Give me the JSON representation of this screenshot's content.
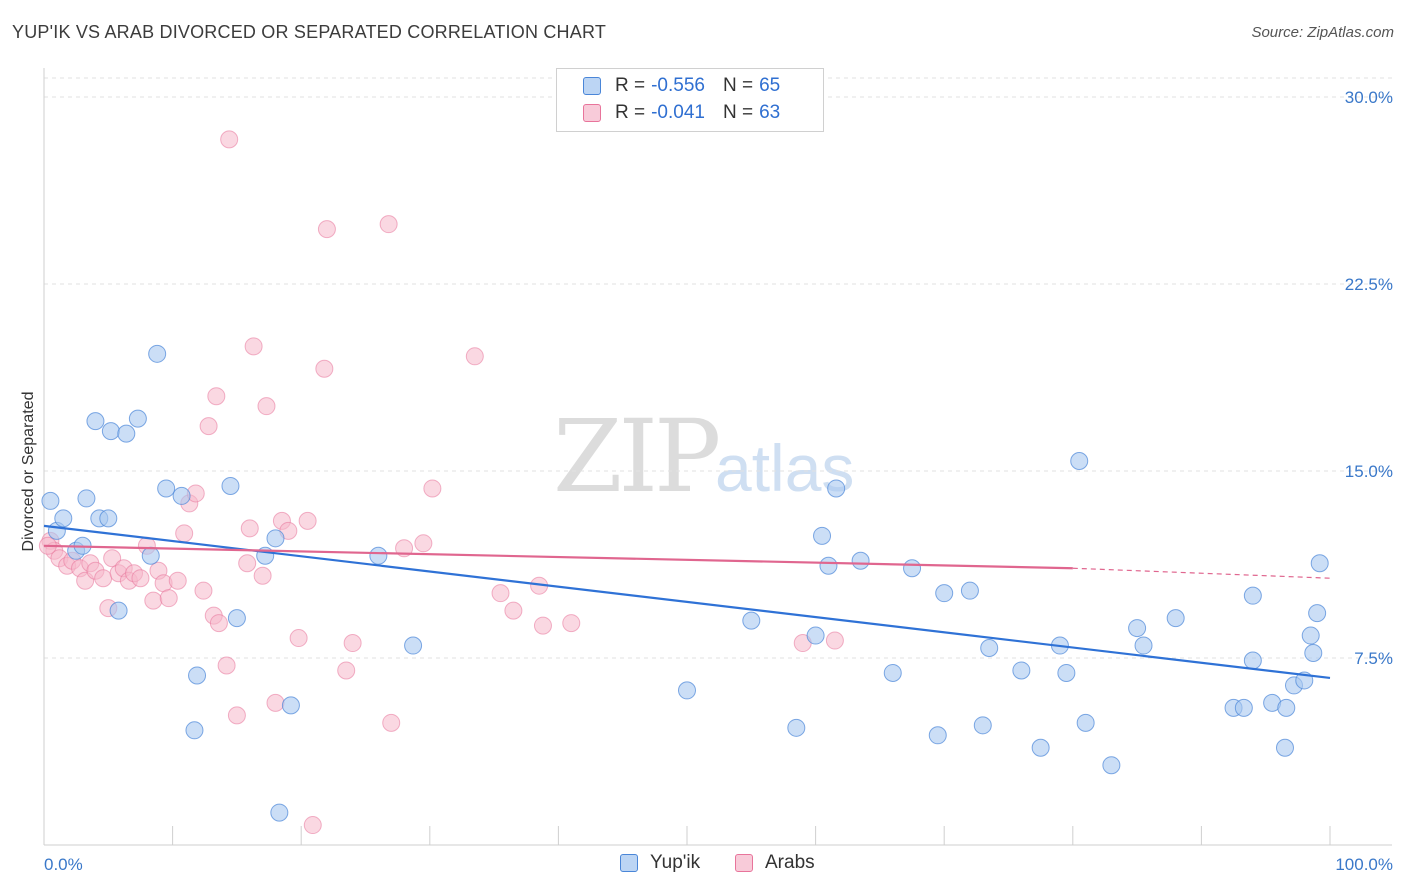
{
  "header": {
    "title": "YUP'IK VS ARAB DIVORCED OR SEPARATED CORRELATION CHART",
    "source": "Source: ZipAtlas.com"
  },
  "watermark": {
    "zip": "ZIP",
    "atlas": "atlas"
  },
  "legend": {
    "rows": [
      {
        "r_label": "R =",
        "r_value": "-0.556",
        "n_label": "N =",
        "n_value": "65",
        "color": "#a9c8f0"
      },
      {
        "r_label": "R =",
        "r_value": "-0.041",
        "n_label": "N =",
        "n_value": "63",
        "color": "#f5b8cb"
      }
    ]
  },
  "bottom_legend": {
    "series1": "Yup'ik",
    "series2": "Arabs"
  },
  "chart_data": {
    "type": "scatter",
    "title": "YUP'IK VS ARAB DIVORCED OR SEPARATED CORRELATION CHART",
    "xlabel": "",
    "ylabel": "Divorced or Separated",
    "xlim": [
      0,
      100
    ],
    "ylim": [
      0,
      31.5
    ],
    "x_tick_labels": [
      "0.0%",
      "100.0%"
    ],
    "y_ticks": [
      7.5,
      15.0,
      22.5,
      30.0
    ],
    "y_tick_labels": [
      "7.5%",
      "15.0%",
      "22.5%",
      "30.0%"
    ],
    "grid": true,
    "colors": {
      "yupik": "#4a86d8",
      "arabs": "#e8749b",
      "yupik_fill": "#a9c8f0",
      "arabs_fill": "#f5b8cb"
    },
    "series": [
      {
        "name": "Yup'ik",
        "trend": {
          "x": [
            0,
            100
          ],
          "y": [
            12.8,
            6.7
          ]
        },
        "points": [
          [
            0.5,
            13.8
          ],
          [
            1.0,
            12.6
          ],
          [
            1.5,
            13.1
          ],
          [
            2.5,
            11.8
          ],
          [
            3.0,
            12.0
          ],
          [
            3.3,
            13.9
          ],
          [
            4.0,
            17.0
          ],
          [
            4.3,
            13.1
          ],
          [
            5.0,
            13.1
          ],
          [
            5.2,
            16.6
          ],
          [
            5.8,
            9.4
          ],
          [
            6.4,
            16.5
          ],
          [
            7.3,
            17.1
          ],
          [
            8.3,
            11.6
          ],
          [
            8.8,
            19.7
          ],
          [
            9.5,
            14.3
          ],
          [
            10.7,
            14.0
          ],
          [
            11.7,
            4.6
          ],
          [
            11.9,
            6.8
          ],
          [
            14.5,
            14.4
          ],
          [
            15.0,
            9.1
          ],
          [
            17.2,
            11.6
          ],
          [
            18.0,
            12.3
          ],
          [
            18.3,
            1.3
          ],
          [
            19.2,
            5.6
          ],
          [
            26.0,
            11.6
          ],
          [
            28.7,
            8.0
          ],
          [
            50.0,
            6.2
          ],
          [
            55.0,
            9.0
          ],
          [
            58.5,
            4.7
          ],
          [
            60.0,
            8.4
          ],
          [
            60.5,
            12.4
          ],
          [
            61.0,
            11.2
          ],
          [
            61.6,
            14.3
          ],
          [
            63.5,
            11.4
          ],
          [
            66.0,
            6.9
          ],
          [
            67.5,
            11.1
          ],
          [
            69.5,
            4.4
          ],
          [
            70.0,
            10.1
          ],
          [
            72.0,
            10.2
          ],
          [
            73.0,
            4.8
          ],
          [
            73.5,
            7.9
          ],
          [
            76.0,
            7.0
          ],
          [
            77.5,
            3.9
          ],
          [
            79.0,
            8.0
          ],
          [
            79.5,
            6.9
          ],
          [
            80.5,
            15.4
          ],
          [
            81.0,
            4.9
          ],
          [
            83.0,
            3.2
          ],
          [
            85.0,
            8.7
          ],
          [
            85.5,
            8.0
          ],
          [
            88.0,
            9.1
          ],
          [
            92.5,
            5.5
          ],
          [
            93.3,
            5.5
          ],
          [
            94.0,
            7.4
          ],
          [
            94.0,
            10.0
          ],
          [
            95.5,
            5.7
          ],
          [
            96.5,
            3.9
          ],
          [
            96.6,
            5.5
          ],
          [
            97.2,
            6.4
          ],
          [
            98.5,
            8.4
          ],
          [
            98.7,
            7.7
          ],
          [
            99.0,
            9.3
          ],
          [
            99.2,
            11.3
          ],
          [
            98.0,
            6.6
          ]
        ]
      },
      {
        "name": "Arabs",
        "trend": {
          "x": [
            0,
            80
          ],
          "y": [
            12.0,
            11.1
          ],
          "dashed_to": [
            100,
            10.7
          ]
        },
        "points": [
          [
            0.5,
            12.2
          ],
          [
            0.8,
            11.8
          ],
          [
            1.2,
            11.5
          ],
          [
            1.8,
            11.2
          ],
          [
            2.2,
            11.4
          ],
          [
            2.8,
            11.1
          ],
          [
            3.2,
            10.6
          ],
          [
            3.6,
            11.3
          ],
          [
            4.0,
            11.0
          ],
          [
            4.6,
            10.7
          ],
          [
            5.0,
            9.5
          ],
          [
            5.3,
            11.5
          ],
          [
            5.8,
            10.9
          ],
          [
            6.2,
            11.1
          ],
          [
            6.6,
            10.6
          ],
          [
            7.0,
            10.9
          ],
          [
            7.5,
            10.7
          ],
          [
            8.0,
            12.0
          ],
          [
            8.5,
            9.8
          ],
          [
            8.9,
            11.0
          ],
          [
            9.3,
            10.5
          ],
          [
            9.7,
            9.9
          ],
          [
            10.4,
            10.6
          ],
          [
            10.9,
            12.5
          ],
          [
            11.3,
            13.7
          ],
          [
            11.8,
            14.1
          ],
          [
            12.4,
            10.2
          ],
          [
            12.8,
            16.8
          ],
          [
            13.2,
            9.2
          ],
          [
            13.4,
            18.0
          ],
          [
            13.6,
            8.9
          ],
          [
            14.2,
            7.2
          ],
          [
            14.4,
            28.3
          ],
          [
            15.0,
            5.2
          ],
          [
            15.8,
            11.3
          ],
          [
            16.0,
            12.7
          ],
          [
            16.3,
            20.0
          ],
          [
            17.0,
            10.8
          ],
          [
            17.3,
            17.6
          ],
          [
            18.0,
            5.7
          ],
          [
            18.5,
            13.0
          ],
          [
            19.0,
            12.6
          ],
          [
            19.8,
            8.3
          ],
          [
            20.5,
            13.0
          ],
          [
            20.9,
            0.8
          ],
          [
            21.8,
            19.1
          ],
          [
            22.0,
            24.7
          ],
          [
            23.5,
            7.0
          ],
          [
            24.0,
            8.1
          ],
          [
            26.8,
            24.9
          ],
          [
            27.0,
            4.9
          ],
          [
            28.0,
            11.9
          ],
          [
            29.5,
            12.1
          ],
          [
            30.2,
            14.3
          ],
          [
            33.5,
            19.6
          ],
          [
            35.5,
            10.1
          ],
          [
            36.5,
            9.4
          ],
          [
            38.5,
            10.4
          ],
          [
            38.8,
            8.8
          ],
          [
            41.0,
            8.9
          ],
          [
            59.0,
            8.1
          ],
          [
            61.5,
            8.2
          ],
          [
            0.3,
            12.0
          ]
        ]
      }
    ]
  }
}
